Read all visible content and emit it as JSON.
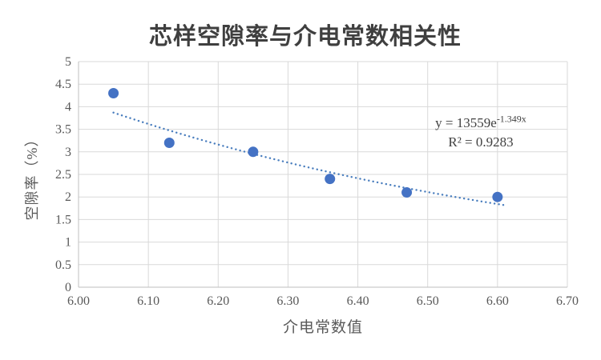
{
  "chart_data": {
    "type": "scatter",
    "title": "芯样空隙率与介电常数相关性",
    "xlabel": "介电常数值",
    "ylabel": "空隙率（%）",
    "xlim": [
      6.0,
      6.7
    ],
    "ylim": [
      0,
      5
    ],
    "x_ticks": [
      "6.00",
      "6.10",
      "6.20",
      "6.30",
      "6.40",
      "6.50",
      "6.60",
      "6.70"
    ],
    "y_ticks": [
      "0",
      "0.5",
      "1",
      "1.5",
      "2",
      "2.5",
      "3",
      "3.5",
      "4",
      "4.5",
      "5"
    ],
    "grid": true,
    "legend_position": "none",
    "points": [
      {
        "x": 6.05,
        "y": 4.3
      },
      {
        "x": 6.13,
        "y": 3.2
      },
      {
        "x": 6.25,
        "y": 3.0
      },
      {
        "x": 6.36,
        "y": 2.4
      },
      {
        "x": 6.47,
        "y": 2.1
      },
      {
        "x": 6.6,
        "y": 2.0
      }
    ],
    "trendline": {
      "type": "exponential",
      "a": 13559,
      "b": -1.349,
      "x_start": 6.05,
      "x_end": 6.61,
      "label_base": "y = 13559e",
      "label_exponent": "-1.349x",
      "r_squared_label": "R² = 0.9283"
    },
    "colors": {
      "point": "#4472C4",
      "trendline": "#4A7EBE",
      "gridline": "#D9D9D9",
      "axis": "#BFBFBF",
      "tick_text": "#595959",
      "title_text": "#3F3F3F",
      "equation_text": "#404040"
    }
  }
}
